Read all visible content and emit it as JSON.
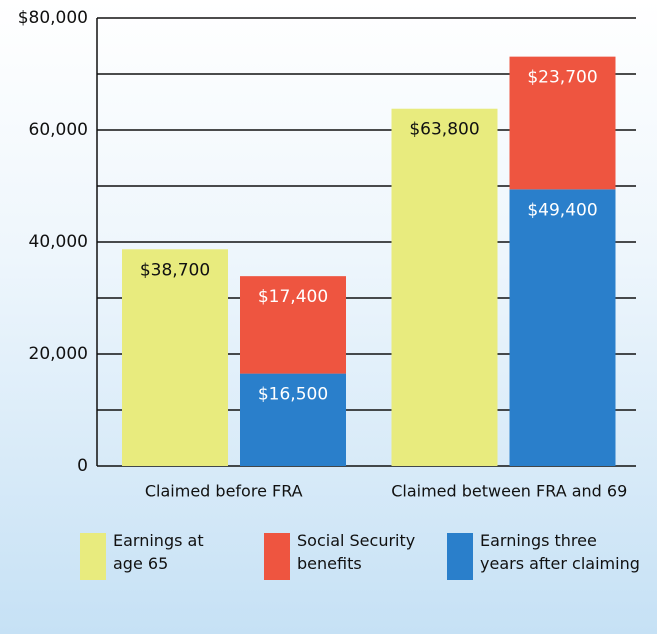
{
  "chart_data": {
    "type": "bar",
    "categories": [
      "Claimed before FRA",
      "Claimed between FRA and 69"
    ],
    "series": [
      {
        "name": "Earnings at\nage 65",
        "color": "#e8eb7e",
        "stack": "a",
        "values": [
          38700,
          63800
        ],
        "value_labels": [
          "$38,700",
          "$63,800"
        ]
      },
      {
        "name": "Social Security\nbenefits",
        "color": "#ee5540",
        "stack": "b",
        "values": [
          17400,
          23700
        ],
        "value_labels": [
          "$17,400",
          "$23,700"
        ]
      },
      {
        "name": "Earnings three\nyears after claiming",
        "color": "#2a7fcb",
        "stack": "b",
        "values": [
          16500,
          49400
        ],
        "value_labels": [
          "$16,500",
          "$49,400"
        ]
      }
    ],
    "ylim": [
      0,
      80000
    ],
    "yticks": [
      0,
      {
        "value": 20000,
        "label": "20,000"
      },
      {
        "value": 40000,
        "label": "40,000"
      },
      {
        "value": 60000,
        "label": "60,000"
      },
      {
        "value": 80000,
        "label": "$80,000"
      }
    ],
    "minor_yticks": [
      10000,
      30000,
      50000,
      70000
    ],
    "grid": true
  }
}
